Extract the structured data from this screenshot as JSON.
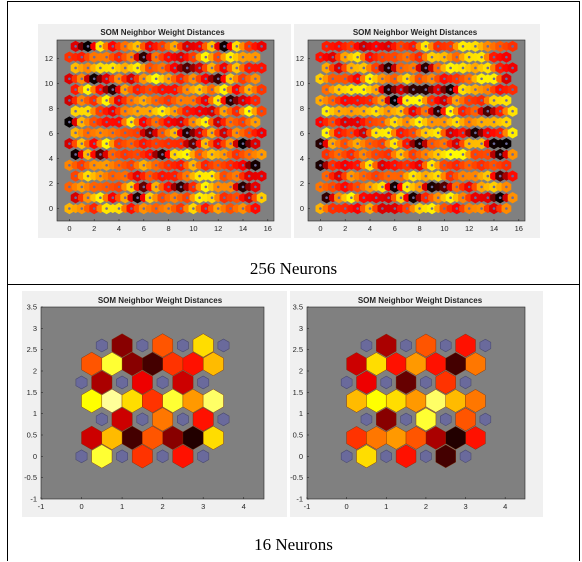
{
  "captions": {
    "top": "256 Neurons",
    "bottom": "16 Neurons"
  },
  "colors": {
    "axes_bg": "#808080",
    "neuron": "#6a6a9c",
    "panel_bg": "#f0f0f0"
  },
  "chart_data": [
    {
      "type": "heatmap",
      "title": "SOM Neighbor Weight Distances",
      "grid": [
        16,
        16
      ],
      "seed": 11,
      "xlim": [
        -1,
        16.5
      ],
      "ylim": [
        -1,
        13.5
      ],
      "xticks": [
        "0",
        "2",
        "4",
        "6",
        "8",
        "10",
        "12",
        "14",
        "16"
      ],
      "yticks": [
        "0",
        "2",
        "4",
        "6",
        "8",
        "10",
        "12"
      ],
      "xtick_values": [
        0,
        2,
        4,
        6,
        8,
        10,
        12,
        14,
        16
      ],
      "ytick_values": [
        0,
        2,
        4,
        6,
        8,
        10,
        12
      ]
    },
    {
      "type": "heatmap",
      "title": "SOM Neighbor Weight Distances",
      "grid": [
        16,
        16
      ],
      "seed": 29,
      "xlim": [
        -1,
        16.5
      ],
      "ylim": [
        -1,
        13.5
      ],
      "xticks": [
        "0",
        "2",
        "4",
        "6",
        "8",
        "10",
        "12",
        "14",
        "16"
      ],
      "yticks": [
        "0",
        "2",
        "4",
        "6",
        "8",
        "10",
        "12"
      ],
      "xtick_values": [
        0,
        2,
        4,
        6,
        8,
        10,
        12,
        14,
        16
      ],
      "ytick_values": [
        0,
        2,
        4,
        6,
        8,
        10,
        12
      ]
    },
    {
      "type": "heatmap",
      "title": "SOM Neighbor Weight Distances",
      "grid": [
        4,
        4
      ],
      "xlim": [
        -1,
        4.5
      ],
      "ylim": [
        -1,
        3.5
      ],
      "xticks": [
        "-1",
        "0",
        "1",
        "2",
        "3",
        "4"
      ],
      "yticks": [
        "-1",
        "-0.5",
        "0",
        "0.5",
        "1",
        "1.5",
        "2",
        "2.5",
        "3",
        "3.5"
      ],
      "xtick_values": [
        -1,
        0,
        1,
        2,
        3,
        4
      ],
      "ytick_values": [
        -1,
        -0.5,
        0,
        0.5,
        1,
        1.5,
        2,
        2.5,
        3,
        3.5
      ],
      "edge_distances": [
        0.2,
        0.7,
        0.55,
        0.9,
        0.35,
        0.6,
        0.8,
        0.5,
        0.3,
        0.95,
        0.7,
        0.25,
        0.1,
        0.45,
        0.3,
        0.55,
        0.6,
        0.2,
        0.4,
        0.15,
        0.75,
        0.5,
        0.65,
        0.8
      ]
    },
    {
      "type": "heatmap",
      "title": "SOM Neighbor Weight Distances",
      "grid": [
        4,
        4
      ],
      "xlim": [
        -1,
        4.5
      ],
      "ylim": [
        -1,
        3.5
      ],
      "xticks": [
        "-1",
        "0",
        "1",
        "2",
        "3",
        "4"
      ],
      "yticks": [
        "-1",
        "-0.5",
        "0",
        "0.5",
        "1",
        "1.5",
        "2",
        "2.5",
        "3",
        "3.5"
      ],
      "xtick_values": [
        -1,
        0,
        1,
        2,
        3,
        4
      ],
      "ytick_values": [
        -1,
        -0.5,
        0,
        0.5,
        1,
        1.5,
        2,
        2.5,
        3,
        3.5
      ],
      "edge_distances": [
        0.3,
        0.55,
        0.6,
        0.4,
        0.45,
        0.9,
        0.75,
        0.5,
        0.6,
        0.95,
        0.8,
        0.35,
        0.25,
        0.2,
        0.3,
        0.4,
        0.5,
        0.15,
        0.35,
        0.45,
        0.65,
        0.7,
        0.85,
        0.6
      ]
    }
  ]
}
